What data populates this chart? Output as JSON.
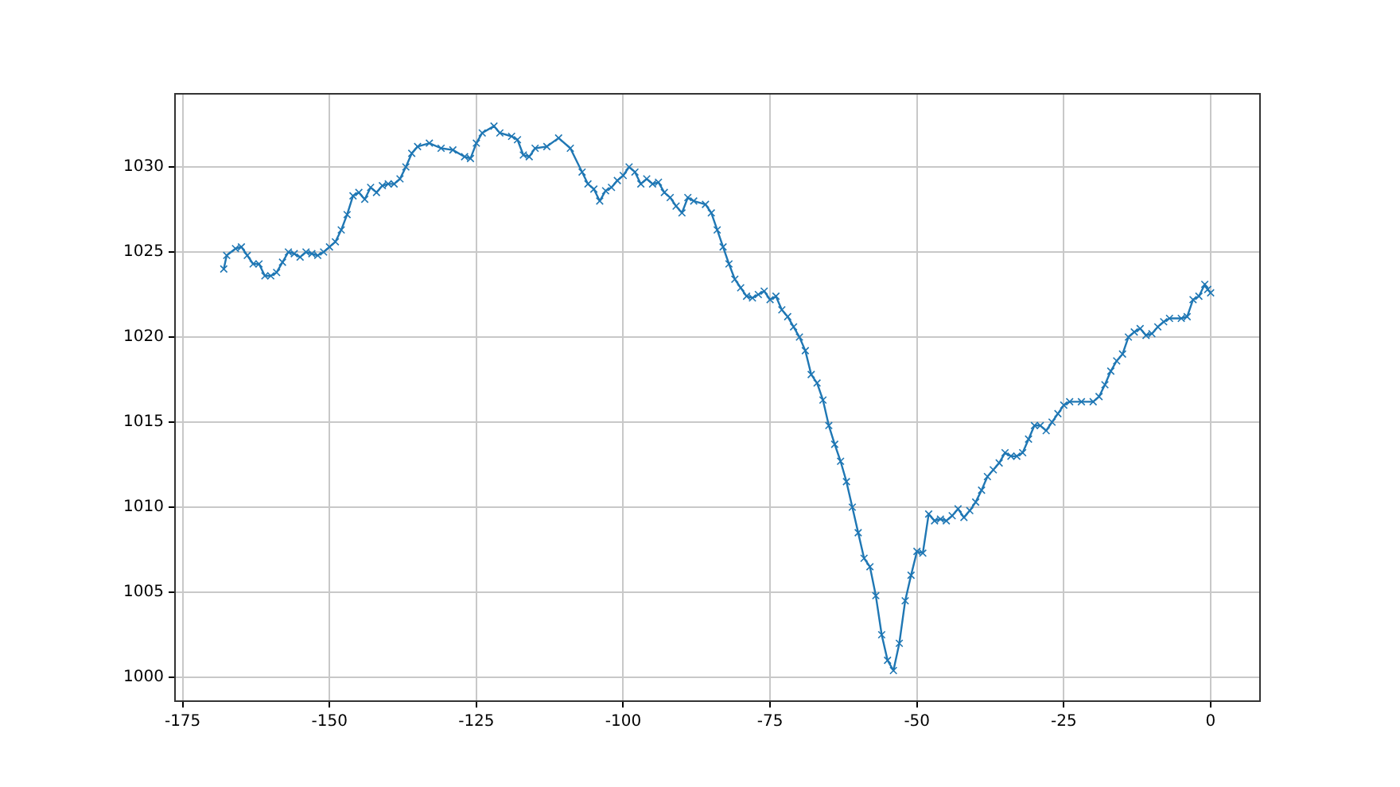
{
  "chart_data": {
    "type": "line",
    "marker": "cross",
    "grid": true,
    "xlim": [
      -176.3,
      8.4
    ],
    "xticks": [
      -175,
      -150,
      -125,
      -100,
      -75,
      -50,
      -25,
      0
    ],
    "ylim": [
      998.6,
      1034.3
    ],
    "yticks": [
      1000,
      1005,
      1010,
      1015,
      1020,
      1025,
      1030
    ],
    "series": [
      {
        "color": "#1f77b4",
        "x": [
          -168,
          -167.5,
          -166,
          -165,
          -164,
          -163,
          -162,
          -161,
          -160,
          -159,
          -158,
          -157,
          -156,
          -155,
          -154,
          -153,
          -152,
          -151,
          -150,
          -149,
          -148,
          -147,
          -146,
          -145,
          -144,
          -143,
          -142,
          -141,
          -140,
          -139,
          -138,
          -137,
          -136,
          -135,
          -133,
          -131,
          -129,
          -127,
          -126,
          -125,
          -124,
          -122,
          -121,
          -119,
          -118,
          -117,
          -116,
          -115,
          -113,
          -111,
          -109,
          -107,
          -106,
          -105,
          -104,
          -103,
          -102,
          -101,
          -100,
          -99,
          -98,
          -97,
          -96,
          -95,
          -94,
          -93,
          -92,
          -91,
          -90,
          -89,
          -88,
          -86,
          -85,
          -84,
          -83,
          -82,
          -81,
          -80,
          -79,
          -78,
          -77,
          -76,
          -75,
          -74,
          -73,
          -72,
          -71,
          -70,
          -69,
          -68,
          -67,
          -66,
          -65,
          -64,
          -63,
          -62,
          -61,
          -60,
          -59,
          -58,
          -57,
          -56,
          -55,
          -54,
          -53,
          -52,
          -51,
          -50,
          -49,
          -48,
          -47,
          -46,
          -45,
          -44,
          -43,
          -42,
          -41,
          -40,
          -39,
          -38,
          -37,
          -36,
          -35,
          -34,
          -33,
          -32,
          -31,
          -30,
          -29,
          -28,
          -27,
          -26,
          -25,
          -24,
          -22,
          -20,
          -19,
          -18,
          -17,
          -16,
          -15,
          -14,
          -13,
          -12,
          -11,
          -10,
          -9,
          -8,
          -7,
          -5,
          -4,
          -3,
          -2,
          -1,
          -0.5,
          0
        ],
        "values": [
          1024.0,
          1024.8,
          1025.2,
          1025.3,
          1024.8,
          1024.3,
          1024.3,
          1023.6,
          1023.6,
          1023.8,
          1024.4,
          1025.0,
          1024.9,
          1024.7,
          1025.0,
          1024.9,
          1024.8,
          1025.0,
          1025.3,
          1025.6,
          1026.3,
          1027.2,
          1028.3,
          1028.5,
          1028.1,
          1028.8,
          1028.5,
          1028.9,
          1029.0,
          1029.0,
          1029.3,
          1030.0,
          1030.8,
          1031.2,
          1031.4,
          1031.1,
          1031.0,
          1030.6,
          1030.5,
          1031.4,
          1032.0,
          1032.4,
          1032.0,
          1031.8,
          1031.6,
          1030.7,
          1030.6,
          1031.1,
          1031.2,
          1031.7,
          1031.1,
          1029.7,
          1029.0,
          1028.7,
          1028.0,
          1028.6,
          1028.8,
          1029.2,
          1029.5,
          1030.0,
          1029.7,
          1029.0,
          1029.3,
          1029.0,
          1029.1,
          1028.5,
          1028.2,
          1027.7,
          1027.3,
          1028.2,
          1028.0,
          1027.8,
          1027.3,
          1026.3,
          1025.3,
          1024.3,
          1023.4,
          1022.9,
          1022.4,
          1022.3,
          1022.5,
          1022.7,
          1022.2,
          1022.4,
          1021.6,
          1021.2,
          1020.6,
          1020.0,
          1019.2,
          1017.8,
          1017.3,
          1016.3,
          1014.8,
          1013.7,
          1012.7,
          1011.5,
          1010.0,
          1008.5,
          1007.0,
          1006.5,
          1004.8,
          1002.5,
          1001.0,
          1000.4,
          1002.0,
          1004.5,
          1006.0,
          1007.4,
          1007.3,
          1009.6,
          1009.2,
          1009.3,
          1009.2,
          1009.5,
          1009.9,
          1009.4,
          1009.8,
          1010.3,
          1011.0,
          1011.8,
          1012.2,
          1012.6,
          1013.2,
          1013.0,
          1013.0,
          1013.2,
          1014.0,
          1014.8,
          1014.8,
          1014.5,
          1015.0,
          1015.5,
          1016.0,
          1016.2,
          1016.2,
          1016.2,
          1016.5,
          1017.2,
          1018.0,
          1018.6,
          1019.0,
          1020.0,
          1020.3,
          1020.5,
          1020.1,
          1020.2,
          1020.6,
          1020.9,
          1021.1,
          1021.1,
          1021.2,
          1022.2,
          1022.4,
          1023.1,
          1022.8,
          1022.6
        ]
      }
    ]
  }
}
